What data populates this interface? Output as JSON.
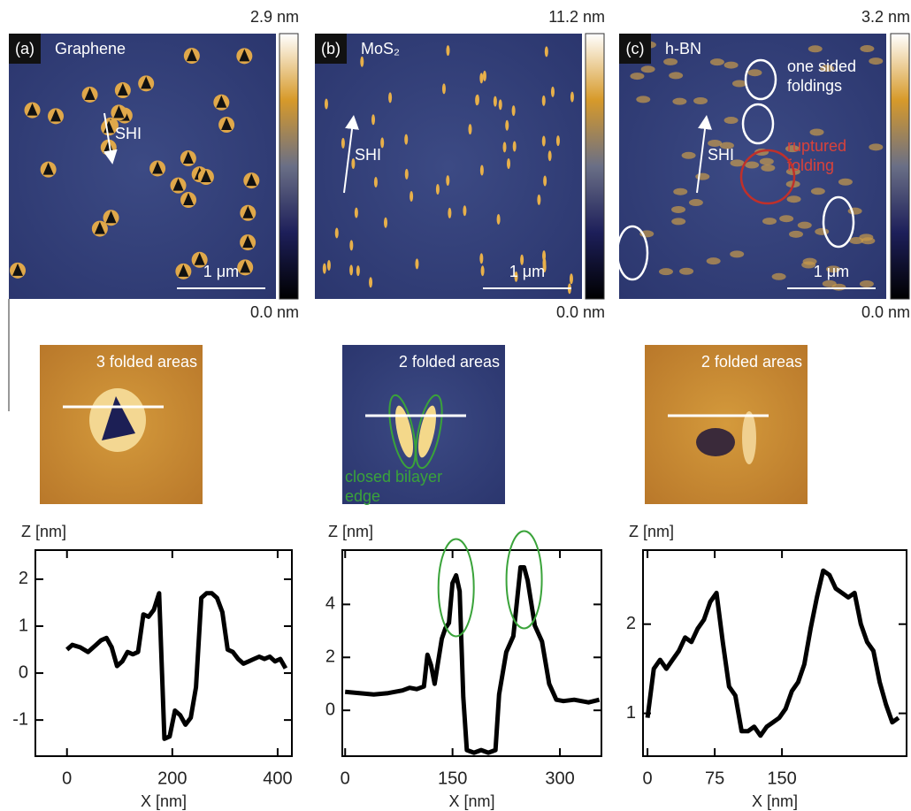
{
  "images": [
    {
      "label": "(a)",
      "material": "Graphene",
      "arrow": "SHI",
      "scale_bar": "1 μm",
      "colorbar_max": "2.9 nm",
      "colorbar_min": "0.0 nm"
    },
    {
      "label": "(b)",
      "material": "MoS₂",
      "arrow": "SHI",
      "scale_bar": "1 μm",
      "colorbar_max": "11.2 nm",
      "colorbar_min": "0.0 nm"
    },
    {
      "label": "(c)",
      "material": "h-BN",
      "arrow": "SHI",
      "scale_bar": "1 μm",
      "colorbar_max": "3.2 nm",
      "colorbar_min": "0.0 nm",
      "annotations": [
        [
          "one sided",
          "foldings"
        ],
        [
          "ruptured",
          "folding"
        ]
      ]
    }
  ],
  "zooms": [
    {
      "label": "3 folded areas"
    },
    {
      "label": "2 folded areas",
      "annotation": [
        "closed bilayer",
        "edge"
      ]
    },
    {
      "label": "2 folded areas"
    }
  ],
  "chart_data": [
    {
      "type": "line",
      "xlabel": "X [nm]",
      "ylabel": "Z [nm]",
      "x": [
        0,
        10,
        25,
        40,
        55,
        65,
        75,
        85,
        95,
        105,
        115,
        125,
        135,
        145,
        155,
        165,
        175,
        185,
        195,
        205,
        215,
        225,
        235,
        245,
        255,
        265,
        275,
        285,
        295,
        305,
        315,
        325,
        335,
        345,
        355,
        365,
        375,
        385,
        395,
        405,
        415
      ],
      "series": [
        {
          "color": "#000000",
          "values": [
            0.5,
            0.6,
            0.55,
            0.45,
            0.6,
            0.7,
            0.75,
            0.55,
            0.15,
            0.25,
            0.45,
            0.4,
            0.45,
            1.25,
            1.2,
            1.35,
            1.7,
            -1.4,
            -1.35,
            -0.8,
            -0.9,
            -1.1,
            -0.95,
            -0.3,
            1.6,
            1.7,
            1.7,
            1.6,
            1.3,
            0.5,
            0.45,
            0.3,
            0.2,
            0.25,
            0.3,
            0.35,
            0.3,
            0.35,
            0.25,
            0.3,
            0.1
          ]
        }
      ],
      "xlim": [
        -60,
        427
      ],
      "ylim": [
        -1.77,
        2.62
      ],
      "xticks": [
        0,
        200,
        400
      ],
      "yticks": [
        -1,
        0,
        1,
        2
      ]
    },
    {
      "type": "line",
      "xlabel": "X [nm]",
      "ylabel": "Z [nm]",
      "x": [
        0,
        20,
        40,
        60,
        80,
        90,
        100,
        110,
        115,
        120,
        125,
        135,
        140,
        145,
        150,
        155,
        160,
        165,
        170,
        180,
        190,
        200,
        210,
        215,
        225,
        235,
        245,
        250,
        255,
        265,
        275,
        285,
        295,
        305,
        320,
        340,
        355
      ],
      "series": [
        {
          "color": "#000000",
          "values": [
            0.7,
            0.65,
            0.6,
            0.65,
            0.75,
            0.85,
            0.8,
            0.9,
            2.1,
            1.7,
            1.0,
            2.7,
            3.1,
            3.3,
            4.8,
            5.1,
            4.5,
            0.5,
            -1.5,
            -1.6,
            -1.5,
            -1.6,
            -1.5,
            0.6,
            2.2,
            2.8,
            5.4,
            5.4,
            4.9,
            3.2,
            2.6,
            1.0,
            0.4,
            0.35,
            0.4,
            0.3,
            0.4
          ]
        }
      ],
      "xlim": [
        -4,
        358
      ],
      "ylim": [
        -1.73,
        6.05
      ],
      "xticks": [
        0,
        150,
        300
      ],
      "yticks": [
        0,
        2,
        4
      ]
    },
    {
      "type": "line",
      "xlabel": "X [nm]",
      "ylabel": "Z [nm]",
      "x": [
        0,
        7,
        14,
        21,
        28,
        35,
        42,
        49,
        56,
        63,
        70,
        77,
        84,
        91,
        98,
        105,
        112,
        119,
        126,
        133,
        140,
        147,
        154,
        161,
        168,
        175,
        182,
        189,
        196,
        203,
        210,
        217,
        224,
        231,
        238,
        245,
        252,
        259,
        266,
        273,
        280
      ],
      "series": [
        {
          "color": "#000000",
          "values": [
            0.95,
            1.5,
            1.6,
            1.5,
            1.6,
            1.7,
            1.85,
            1.8,
            1.95,
            2.05,
            2.25,
            2.35,
            1.8,
            1.3,
            1.2,
            0.8,
            0.8,
            0.85,
            0.75,
            0.85,
            0.9,
            0.95,
            1.05,
            1.25,
            1.35,
            1.55,
            1.95,
            2.3,
            2.6,
            2.55,
            2.4,
            2.35,
            2.3,
            2.35,
            2.0,
            1.8,
            1.7,
            1.35,
            1.1,
            0.9,
            0.95
          ]
        }
      ],
      "xlim": [
        -5,
        289
      ],
      "ylim": [
        0.52,
        2.83
      ],
      "xticks": [
        0,
        75,
        150
      ],
      "yticks": [
        1,
        2
      ]
    }
  ]
}
